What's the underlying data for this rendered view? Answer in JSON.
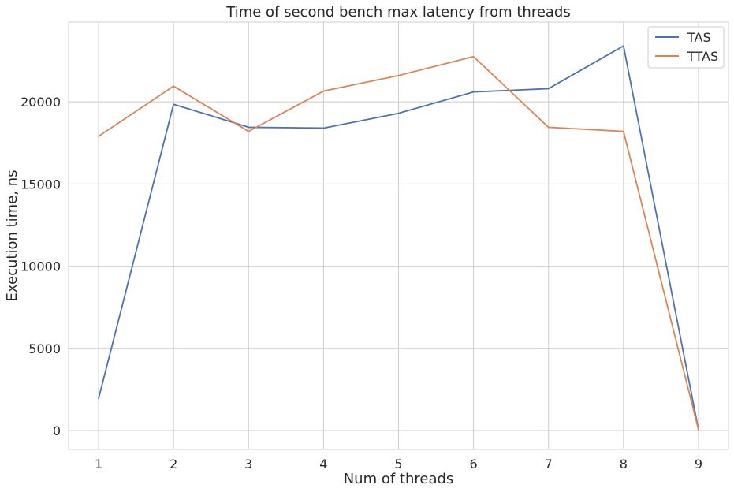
{
  "chart_data": {
    "type": "line",
    "title": "Time of second bench max latency from threads",
    "xlabel": "Num of threads",
    "ylabel": "Execution time, ns",
    "x": [
      1,
      2,
      3,
      4,
      5,
      6,
      7,
      8,
      9
    ],
    "x_ticks": [
      "1",
      "2",
      "3",
      "4",
      "5",
      "6",
      "7",
      "8",
      "9"
    ],
    "y_ticks": [
      "0",
      "5000",
      "10000",
      "15000",
      "20000"
    ],
    "ylim": [
      -1150,
      24850
    ],
    "xlim": [
      0.6,
      9.4
    ],
    "grid": true,
    "legend_position": "top-right",
    "series": [
      {
        "name": "TAS",
        "color": "#4c72b0",
        "values": [
          1950,
          19850,
          18450,
          18400,
          19300,
          20600,
          20800,
          23400,
          50
        ]
      },
      {
        "name": "TTAS",
        "color": "#dd8452",
        "values": [
          17900,
          20950,
          18200,
          20650,
          21600,
          22750,
          18450,
          18200,
          50
        ]
      }
    ]
  }
}
